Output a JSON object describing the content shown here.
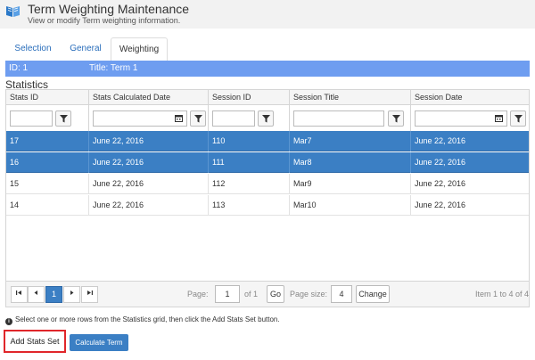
{
  "header": {
    "title": "Term Weighting Maintenance",
    "subtitle": "View or modify Term weighting information.",
    "logo_icon": "book-icon"
  },
  "tabs": [
    {
      "label": "Selection",
      "active": false
    },
    {
      "label": "General",
      "active": false
    },
    {
      "label": "Weighting",
      "active": true
    }
  ],
  "term_bar": {
    "id_text": "ID: 1",
    "title_text": "Title: Term 1",
    "color": "#6e9df0"
  },
  "section_title": "Statistics",
  "grid": {
    "columns": [
      "Stats ID",
      "Stats Calculated Date",
      "Session ID",
      "Session Title",
      "Session Date"
    ],
    "filter_icon": "funnel-icon",
    "calendar_icon": "calendar-icon",
    "rows": [
      {
        "stats_id": "17",
        "calc_date": "June 22, 2016",
        "session_id": "110",
        "session_title": "Mar7",
        "session_date": "June 22, 2016",
        "selected": true
      },
      {
        "stats_id": "16",
        "calc_date": "June 22, 2016",
        "session_id": "111",
        "session_title": "Mar8",
        "session_date": "June 22, 2016",
        "selected": true
      },
      {
        "stats_id": "15",
        "calc_date": "June 22, 2016",
        "session_id": "112",
        "session_title": "Mar9",
        "session_date": "June 22, 2016",
        "selected": false
      },
      {
        "stats_id": "14",
        "calc_date": "June 22, 2016",
        "session_id": "113",
        "session_title": "Mar10",
        "session_date": "June 22, 2016",
        "selected": false
      }
    ],
    "selected_color": "#3b7fc4"
  },
  "pager": {
    "first_icon": "first-page-icon",
    "prev_icon": "prev-page-icon",
    "current_page": "1",
    "next_icon": "next-page-icon",
    "last_icon": "last-page-icon",
    "page_label": "Page:",
    "page_value": "1",
    "of_text": "of 1",
    "go_label": "Go",
    "page_size_label": "Page size:",
    "page_size_value": "4",
    "change_label": "Change",
    "items_text": "Item 1 to 4 of 4"
  },
  "hint": {
    "icon": "info-icon",
    "text": "Select one or more rows from the Statistics grid, then click the Add Stats Set button."
  },
  "buttons": {
    "add_stats_set": "Add Stats Set",
    "calculate_term": "Calculate Term"
  }
}
